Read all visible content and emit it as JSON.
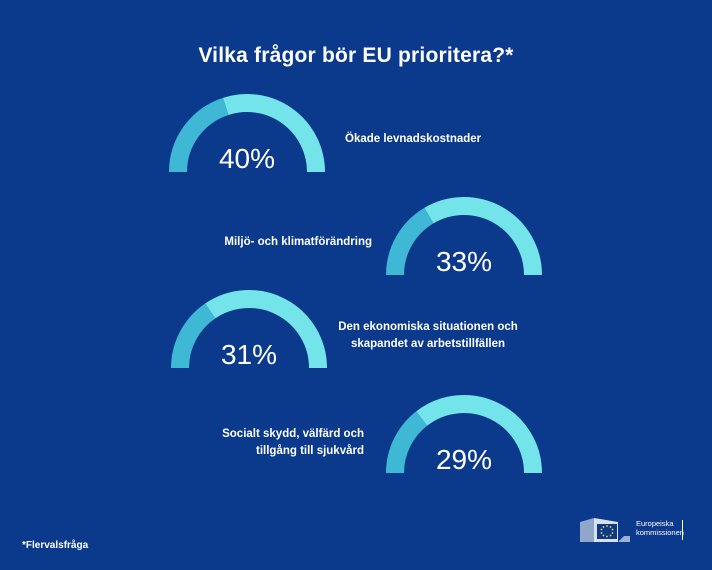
{
  "chart_data": {
    "type": "gauge",
    "title": "Vilka frågor bör EU prioritera?*",
    "items": [
      {
        "label": "Ökade levnadskostnader",
        "value": 40,
        "display": "40%"
      },
      {
        "label": "Miljö- och klimatförändring",
        "value": 33,
        "display": "33%"
      },
      {
        "label": "Den ekonomiska situationen och skapandet av arbetstillfällen",
        "label_lines": [
          "Den ekonomiska situationen och",
          "skapandet av arbetstillfällen"
        ],
        "value": 31,
        "display": "31%"
      },
      {
        "label": "Socialt skydd, välfärd och tillgång till sjukvård",
        "label_lines": [
          "Socialt skydd, välfärd och",
          "tillgång till sjukvård"
        ],
        "value": 29,
        "display": "29%"
      }
    ],
    "colors": {
      "background": "#0b3a8c",
      "arc_value": "#3fb8d6",
      "arc_rest": "#72e4ea"
    }
  },
  "footnote": "*Flervalsfråga",
  "logo": {
    "line1": "Europeiska",
    "line2": "kommissionen"
  }
}
